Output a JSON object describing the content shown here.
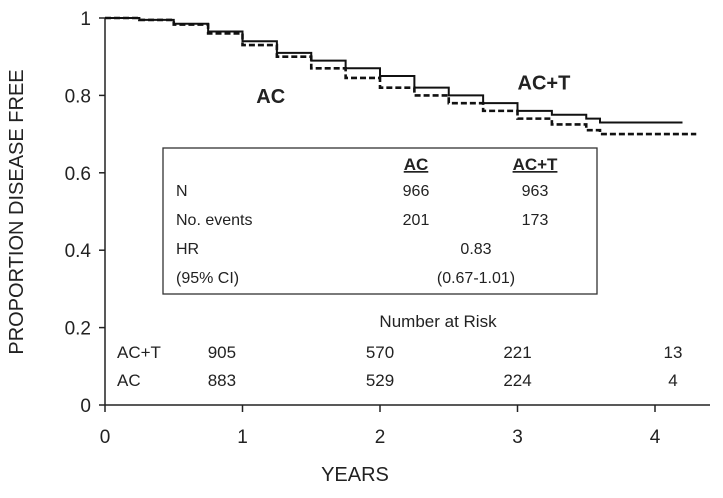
{
  "chart_data": {
    "type": "line",
    "title": "",
    "xlabel": "YEARS",
    "ylabel": "PROPORTION DISEASE FREE",
    "xlim": [
      0,
      4.4
    ],
    "ylim": [
      0,
      1
    ],
    "x_ticks": [
      "0",
      "1",
      "2",
      "3",
      "4"
    ],
    "y_ticks": [
      "0",
      "0.2",
      "0.4",
      "0.6",
      "0.8",
      "1"
    ],
    "series": [
      {
        "name": "AC+T",
        "style": "solid",
        "x": [
          0,
          0.25,
          0.5,
          0.75,
          1.0,
          1.25,
          1.5,
          1.75,
          2.0,
          2.25,
          2.5,
          2.75,
          3.0,
          3.25,
          3.5,
          3.6,
          4.2
        ],
        "y": [
          1.0,
          0.995,
          0.985,
          0.965,
          0.94,
          0.91,
          0.89,
          0.87,
          0.85,
          0.82,
          0.8,
          0.78,
          0.76,
          0.75,
          0.74,
          0.73,
          0.73
        ]
      },
      {
        "name": "AC",
        "style": "dashed",
        "x": [
          0,
          0.25,
          0.5,
          0.75,
          1.0,
          1.25,
          1.5,
          1.75,
          2.0,
          2.25,
          2.5,
          2.75,
          3.0,
          3.25,
          3.5,
          3.6,
          4.3
        ],
        "y": [
          1.0,
          0.995,
          0.983,
          0.96,
          0.93,
          0.9,
          0.87,
          0.845,
          0.82,
          0.8,
          0.78,
          0.76,
          0.74,
          0.725,
          0.71,
          0.7,
          0.7
        ]
      }
    ],
    "series_labels": [
      {
        "text": "AC+T",
        "x": 3.0,
        "y": 0.815
      },
      {
        "text": "AC",
        "x": 1.1,
        "y": 0.78
      }
    ],
    "stats_table": {
      "columns": [
        "AC",
        "AC+T"
      ],
      "rows": [
        {
          "label": "N",
          "ac": "966",
          "act": "963"
        },
        {
          "label": "No. events",
          "ac": "201",
          "act": "173"
        },
        {
          "label": "HR",
          "combined": "0.83"
        },
        {
          "label": "(95% CI)",
          "combined": "(0.67-1.01)"
        }
      ]
    },
    "risk_table": {
      "title": "Number at Risk",
      "rows": [
        {
          "label": "AC+T",
          "values": [
            "905",
            "570",
            "221",
            "13"
          ]
        },
        {
          "label": "AC",
          "values": [
            "883",
            "529",
            "224",
            "4"
          ]
        }
      ]
    },
    "grid": false,
    "legend": "none"
  }
}
